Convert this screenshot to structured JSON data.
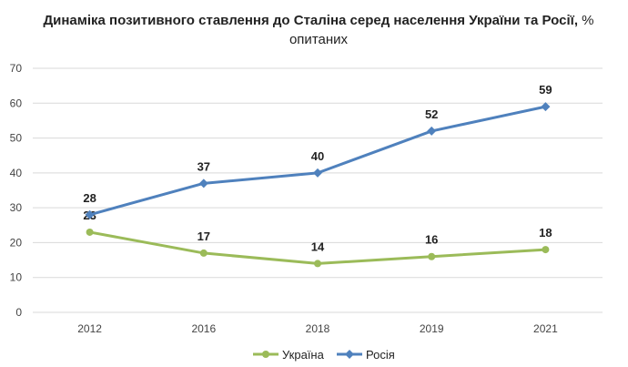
{
  "chart_data": {
    "type": "line",
    "title_bold": "Динаміка позитивного ставлення до Сталіна серед населення України та Росії,",
    "title_rest": " % опитаних",
    "categories": [
      "2012",
      "2016",
      "2018",
      "2019",
      "2021"
    ],
    "series": [
      {
        "name": "Україна",
        "color": "#9BBB59",
        "marker": "circle",
        "values": [
          23,
          17,
          14,
          16,
          18
        ]
      },
      {
        "name": "Росія",
        "color": "#4F81BD",
        "marker": "diamond",
        "values": [
          28,
          37,
          40,
          52,
          59
        ]
      }
    ],
    "yticks": [
      0,
      10,
      20,
      30,
      40,
      50,
      60,
      70
    ],
    "ylim": [
      0,
      70
    ],
    "xlabel": "",
    "ylabel": "",
    "grid": true,
    "legend_position": "bottom"
  }
}
